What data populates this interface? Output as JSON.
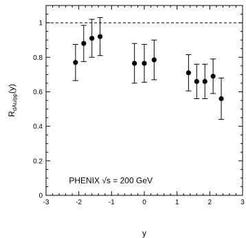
{
  "chart_data": {
    "type": "scatter",
    "xlabel": "y",
    "ylabel_main": "R",
    "ylabel_sub": "dAu/pp",
    "ylabel_suffix": "(y)",
    "xlim": [
      -3,
      3
    ],
    "ylim": [
      0,
      1.1
    ],
    "xticks": [
      -3,
      -2,
      -1,
      0,
      1,
      2,
      3
    ],
    "yticks": [
      0,
      0.2,
      0.4,
      0.6,
      0.8,
      1
    ],
    "xtick_labels": [
      "-3",
      "-2",
      "-1",
      "0",
      "1",
      "2",
      "3"
    ],
    "ytick_labels": [
      "0",
      "0.2",
      "0.4",
      "0.6",
      "0.8",
      "1"
    ],
    "reference_line": 1,
    "annotation": "PHENIX √s = 200 GeV",
    "points": [
      {
        "x": -2.1,
        "y": 0.77,
        "lo": 0.665,
        "hi": 0.875
      },
      {
        "x": -1.85,
        "y": 0.88,
        "lo": 0.775,
        "hi": 0.985
      },
      {
        "x": -1.6,
        "y": 0.91,
        "lo": 0.8,
        "hi": 1.02
      },
      {
        "x": -1.35,
        "y": 0.92,
        "lo": 0.81,
        "hi": 1.03
      },
      {
        "x": -0.3,
        "y": 0.765,
        "lo": 0.65,
        "hi": 0.88
      },
      {
        "x": 0.0,
        "y": 0.765,
        "lo": 0.655,
        "hi": 0.875
      },
      {
        "x": 0.3,
        "y": 0.785,
        "lo": 0.67,
        "hi": 0.9
      },
      {
        "x": 1.35,
        "y": 0.71,
        "lo": 0.605,
        "hi": 0.815
      },
      {
        "x": 1.6,
        "y": 0.66,
        "lo": 0.56,
        "hi": 0.76
      },
      {
        "x": 1.85,
        "y": 0.66,
        "lo": 0.56,
        "hi": 0.76
      },
      {
        "x": 2.1,
        "y": 0.69,
        "lo": 0.59,
        "hi": 0.79
      },
      {
        "x": 2.35,
        "y": 0.56,
        "lo": 0.44,
        "hi": 0.68
      }
    ]
  }
}
